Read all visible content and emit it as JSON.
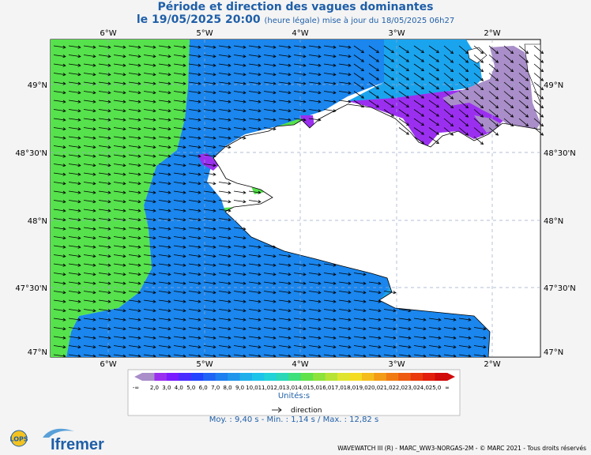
{
  "header": {
    "title": "Période et direction des vagues dominantes",
    "date_line": "le 19/05/2025 20:00",
    "date_note": "(heure légale) mise à jour du 18/05/2025 06h27"
  },
  "axes": {
    "top_lon": [
      "6°W",
      "5°W",
      "4°W",
      "3°W",
      "2°W"
    ],
    "bottom_lon": [
      "6°W",
      "5°W",
      "4°W",
      "3°W",
      "2°W"
    ],
    "left_lat": [
      "49°N",
      "48°30'N",
      "48°N",
      "47°30'N",
      "47°N"
    ],
    "right_lat": [
      "49°N",
      "48°30'N",
      "48°N",
      "47°30'N",
      "47°N"
    ]
  },
  "legend": {
    "labels": [
      "-∞",
      "2,0",
      "3,0",
      "4,0",
      "5,0",
      "6,0",
      "7,0",
      "8,0",
      "9,0",
      "10,0",
      "11,0",
      "12,0",
      "13,0",
      "14,0",
      "15,0",
      "16,0",
      "17,0",
      "18,0",
      "19,0",
      "20,0",
      "21,0",
      "22,0",
      "23,0",
      "24,0",
      "25,0",
      "∞"
    ],
    "colors": [
      "#a98ec9",
      "#9b2ff0",
      "#7a1cff",
      "#4a2cff",
      "#2244ff",
      "#1f64f5",
      "#1e7ff0",
      "#1f96ec",
      "#1fb0ec",
      "#1ec3ea",
      "#21d2d9",
      "#2ad8b8",
      "#3ee07c",
      "#62e24a",
      "#8de23c",
      "#b7e336",
      "#dfe52f",
      "#f4dc23",
      "#f4bd1d",
      "#f39c18",
      "#f17b13",
      "#ee5a10",
      "#ea3a0d",
      "#e21f0c",
      "#d10a0a"
    ],
    "unit": "Unités:s",
    "direction_label": "direction"
  },
  "stats": {
    "text": "Moy. : 9,40 s   -   Min. : 1,14 s / Max. : 12,82 s"
  },
  "footer": {
    "credit": "WAVEWATCH III (R) - MARC_WW3-NORGAS-2M - © MARC 2021 - Tous droits réservés",
    "logo_left": "LOPS",
    "logo_right": "Ifremer"
  },
  "colors": {
    "green_zone": "#56e24c",
    "blue_zone": "#1a86ee",
    "cyan_zone": "#1aa4ee",
    "purple_zone": "#9b2ff0",
    "lilac_zone": "#a98ec9",
    "land": "#ffffff"
  }
}
